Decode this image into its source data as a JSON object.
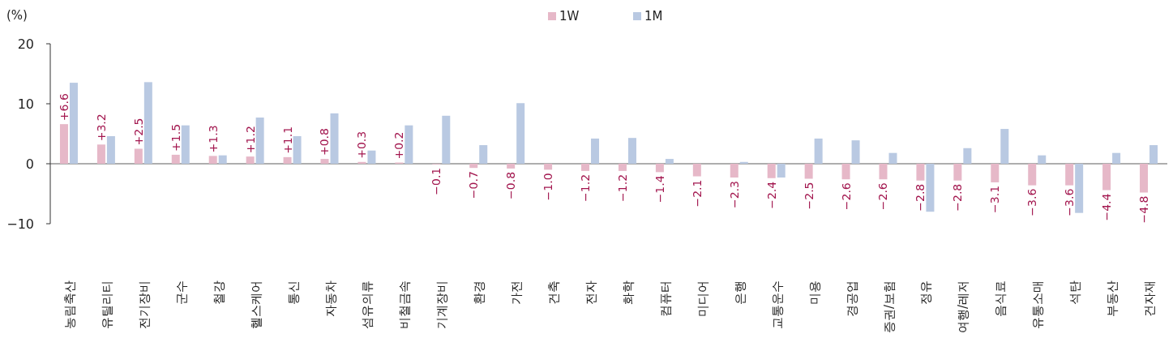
{
  "chart_data": {
    "type": "bar",
    "ylabel": "(%)",
    "categories": [
      "농림축산",
      "유틸리티",
      "전기장비",
      "군수",
      "철강",
      "헬스케어",
      "통신",
      "자동차",
      "섬유의류",
      "비철금속",
      "기계장비",
      "환경",
      "가전",
      "건축",
      "전자",
      "화학",
      "컴퓨터",
      "미디어",
      "은행",
      "교통운수",
      "미용",
      "경공업",
      "증권/보험",
      "정유",
      "여행/레저",
      "음식료",
      "유통소매",
      "석탄",
      "부동산",
      "건자재"
    ],
    "series": [
      {
        "name": "1W",
        "color": "#e6b8c8",
        "values": [
          6.6,
          3.2,
          2.5,
          1.5,
          1.3,
          1.2,
          1.1,
          0.8,
          0.3,
          0.2,
          -0.1,
          -0.7,
          -0.8,
          -1.0,
          -1.2,
          -1.2,
          -1.4,
          -2.1,
          -2.3,
          -2.4,
          -2.5,
          -2.6,
          -2.6,
          -2.8,
          -2.8,
          -3.1,
          -3.6,
          -3.6,
          -4.4,
          -4.8
        ],
        "value_labels": [
          "+6.6",
          "+3.2",
          "+2.5",
          "+1.5",
          "+1.3",
          "+1.2",
          "+1.1",
          "+0.8",
          "+0.3",
          "+0.2",
          "−0.1",
          "−0.7",
          "−0.8",
          "−1.0",
          "−1.2",
          "−1.2",
          "−1.4",
          "−2.1",
          "−2.3",
          "−2.4",
          "−2.5",
          "−2.6",
          "−2.6",
          "−2.8",
          "−2.8",
          "−3.1",
          "−3.6",
          "−3.6",
          "−4.4",
          "−4.8"
        ]
      },
      {
        "name": "1M",
        "color": "#b9c9e2",
        "values": [
          13.5,
          4.6,
          13.6,
          6.4,
          1.4,
          7.7,
          4.6,
          8.4,
          2.2,
          6.4,
          8.0,
          3.1,
          10.1,
          0,
          4.2,
          4.3,
          0.8,
          0,
          0.3,
          -2.3,
          4.2,
          3.9,
          1.8,
          -8.0,
          2.6,
          5.8,
          1.4,
          -8.2,
          1.8,
          3.1
        ]
      }
    ],
    "ylim": [
      -10,
      20
    ],
    "yticks": [
      {
        "value": 20,
        "label": "20"
      },
      {
        "value": 10,
        "label": "10"
      },
      {
        "value": 0,
        "label": "0"
      },
      {
        "value": -10,
        "label": "−10"
      }
    ],
    "legend": "top"
  }
}
